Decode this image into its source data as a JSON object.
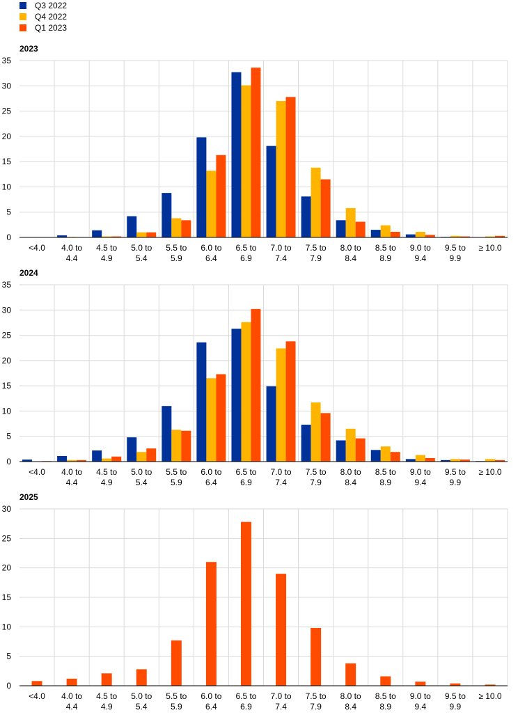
{
  "colors": {
    "Q3 2022": "#003299",
    "Q4 2022": "#ffb400",
    "Q1 2023": "#ff4b00",
    "grid": "#d9d9d9",
    "axis": "#000000"
  },
  "legend": [
    {
      "label": "Q3 2022",
      "color": "#003299"
    },
    {
      "label": "Q4 2022",
      "color": "#ffb400"
    },
    {
      "label": "Q1 2023",
      "color": "#ff4b00"
    }
  ],
  "chart_data": [
    {
      "type": "bar",
      "title": "2023",
      "categories": [
        [
          "<4.0"
        ],
        [
          "4.0 to",
          "4.4"
        ],
        [
          "4.5 to",
          "4.9"
        ],
        [
          "5.0 to",
          "5.4"
        ],
        [
          "5.5 to",
          "5.9"
        ],
        [
          "6.0 to",
          "6.4"
        ],
        [
          "6.5 to",
          "6.9"
        ],
        [
          "7.0 to",
          "7.4"
        ],
        [
          "7.5 to",
          "7.9"
        ],
        [
          "8.0 to",
          "8.4"
        ],
        [
          "8.5 to",
          "8.9"
        ],
        [
          "9.0 to",
          "9.4"
        ],
        [
          "9.5 to",
          "9.9"
        ],
        [
          "≥ 10.0"
        ]
      ],
      "ylim": [
        0,
        35
      ],
      "yticks": [
        0,
        5,
        10,
        15,
        20,
        25,
        30,
        35
      ],
      "grid": true,
      "series": [
        {
          "name": "Q3 2022",
          "values": [
            0.0,
            0.4,
            1.4,
            4.2,
            8.8,
            19.8,
            32.7,
            18.1,
            8.1,
            3.4,
            1.5,
            0.6,
            0.1,
            0.0
          ]
        },
        {
          "name": "Q4 2022",
          "values": [
            0.0,
            0.1,
            0.2,
            1.0,
            3.8,
            13.2,
            30.1,
            27.0,
            13.8,
            5.8,
            2.4,
            1.1,
            0.3,
            0.2
          ]
        },
        {
          "name": "Q1 2023",
          "values": [
            0.0,
            0.0,
            0.2,
            1.0,
            3.4,
            16.3,
            33.6,
            27.8,
            11.5,
            3.1,
            1.1,
            0.5,
            0.2,
            0.3
          ]
        }
      ]
    },
    {
      "type": "bar",
      "title": "2024",
      "categories": [
        [
          "<4.0"
        ],
        [
          "4.0 to",
          "4.4"
        ],
        [
          "4.5 to",
          "4.9"
        ],
        [
          "5.0 to",
          "5.4"
        ],
        [
          "5.5 to",
          "5.9"
        ],
        [
          "6.0 to",
          "6.4"
        ],
        [
          "6.5 to",
          "6.9"
        ],
        [
          "7.0 to",
          "7.4"
        ],
        [
          "7.5 to",
          "7.9"
        ],
        [
          "8.0 to",
          "8.4"
        ],
        [
          "8.5 to",
          "8.9"
        ],
        [
          "9.0 to",
          "9.4"
        ],
        [
          "9.5 to",
          "9.9"
        ],
        [
          "≥ 10.0"
        ]
      ],
      "ylim": [
        0,
        35
      ],
      "yticks": [
        0,
        5,
        10,
        15,
        20,
        25,
        30,
        35
      ],
      "grid": true,
      "series": [
        {
          "name": "Q3 2022",
          "values": [
            0.4,
            1.1,
            2.2,
            4.8,
            11.0,
            23.6,
            26.3,
            14.9,
            7.3,
            4.2,
            2.3,
            0.5,
            0.3,
            0.1
          ]
        },
        {
          "name": "Q4 2022",
          "values": [
            0.0,
            0.3,
            0.6,
            1.9,
            6.3,
            16.5,
            27.6,
            22.4,
            11.7,
            6.5,
            3.0,
            1.3,
            0.5,
            0.5
          ]
        },
        {
          "name": "Q1 2023",
          "values": [
            0.1,
            0.3,
            1.0,
            2.6,
            6.1,
            17.3,
            30.2,
            23.8,
            9.6,
            4.6,
            1.9,
            0.7,
            0.4,
            0.3
          ]
        }
      ]
    },
    {
      "type": "bar",
      "title": "2025",
      "categories": [
        [
          "<4.0"
        ],
        [
          "4.0 to",
          "4.4"
        ],
        [
          "4.5 to",
          "4.9"
        ],
        [
          "5.0 to",
          "5.4"
        ],
        [
          "5.5 to",
          "5.9"
        ],
        [
          "6.0 to",
          "6.4"
        ],
        [
          "6.5 to",
          "6.9"
        ],
        [
          "7.0 to",
          "7.4"
        ],
        [
          "7.5 to",
          "7.9"
        ],
        [
          "8.0 to",
          "8.4"
        ],
        [
          "8.5 to",
          "8.9"
        ],
        [
          "9.0 to",
          "9.4"
        ],
        [
          "9.5 to",
          "9.9"
        ],
        [
          "≥ 10.0"
        ]
      ],
      "ylim": [
        0,
        30
      ],
      "yticks": [
        0,
        5,
        10,
        15,
        20,
        25,
        30
      ],
      "grid": true,
      "series": [
        {
          "name": "Q1 2023",
          "values": [
            0.8,
            1.2,
            2.1,
            2.8,
            7.7,
            21.0,
            27.8,
            19.0,
            9.8,
            3.8,
            1.6,
            0.7,
            0.4,
            0.2
          ]
        }
      ]
    }
  ]
}
